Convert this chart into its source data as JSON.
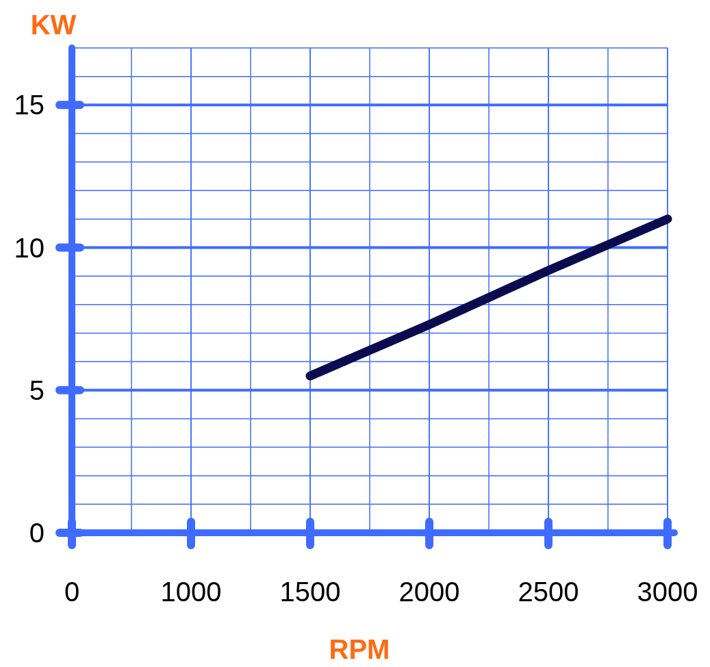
{
  "chart_data": {
    "type": "line",
    "xlabel": "RPM",
    "ylabel": "KW",
    "categories": [
      "0",
      "1000",
      "1500",
      "2000",
      "2500",
      "3000"
    ],
    "series": [
      {
        "color": "#0b0b4f",
        "values": [
          null,
          null,
          5.5,
          7.3,
          9.2,
          11
        ]
      }
    ],
    "ylim": [
      0,
      17
    ],
    "yticks": [
      0,
      5,
      10,
      15
    ],
    "grid": true,
    "marker": "none",
    "line_style": "solid"
  }
}
